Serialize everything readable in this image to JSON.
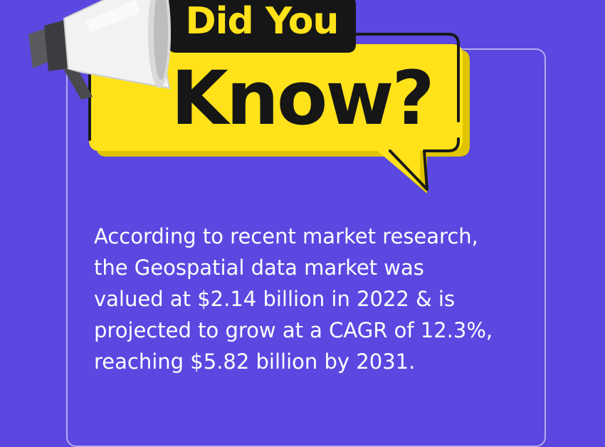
{
  "headline": {
    "line1": "Did You",
    "line2": "Know?"
  },
  "fact_lines": [
    "According to recent market research,",
    "the Geospatial data market was",
    "valued at $2.14 billion in 2022 & is",
    "projected to grow at a CAGR of 12.3%,",
    "reaching $5.82 billion by 2031."
  ],
  "colors": {
    "background": "#5b48e0",
    "bubble_yellow": "#ffe21a",
    "outline": "#1a1a1a",
    "text": "#ffffff"
  },
  "icons": [
    "megaphone-icon"
  ]
}
